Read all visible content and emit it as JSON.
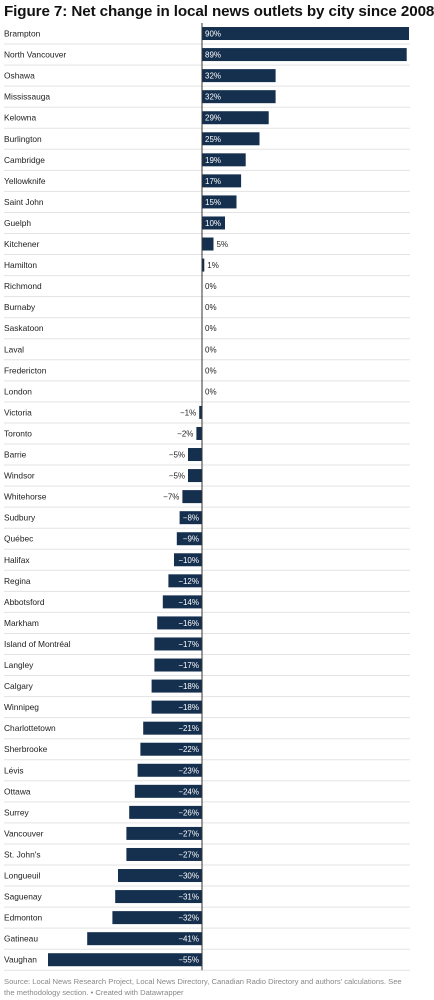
{
  "title": "Figure 7: Net change in local news outlets by city since 2008",
  "footer": {
    "source": "Source: Local News Research Project, Local News Directory, Canadian Radio Directory and authors' calculations. See the methodology section.",
    "credit": "Created with Datawrapper"
  },
  "colors": {
    "bar": "#152f4e",
    "label_inside": "#ffffff",
    "label_outside": "#222222",
    "gridline": "#e3e3e3"
  },
  "chart_data": {
    "type": "bar",
    "orientation": "horizontal",
    "value_suffix": "%",
    "categories": [
      "Brampton",
      "North Vancouver",
      "Oshawa",
      "Mississauga",
      "Kelowna",
      "Burlington",
      "Cambridge",
      "Yellowknife",
      "Saint John",
      "Guelph",
      "Kitchener",
      "Hamilton",
      "Richmond",
      "Burnaby",
      "Saskatoon",
      "Laval",
      "Fredericton",
      "London",
      "Victoria",
      "Toronto",
      "Barrie",
      "Windsor",
      "Whitehorse",
      "Sudbury",
      "Québec",
      "Halifax",
      "Regina",
      "Abbotsford",
      "Markham",
      "Island of Montréal",
      "Langley",
      "Calgary",
      "Winnipeg",
      "Charlottetown",
      "Sherbrooke",
      "Lévis",
      "Ottawa",
      "Surrey",
      "Vancouver",
      "St. John's",
      "Longueuil",
      "Saguenay",
      "Edmonton",
      "Gatineau",
      "Vaughan"
    ],
    "values": [
      90,
      89,
      32,
      32,
      29,
      25,
      19,
      17,
      15,
      10,
      5,
      1,
      0,
      0,
      0,
      0,
      0,
      0,
      -1,
      -2,
      -5,
      -5,
      -7,
      -8,
      -9,
      -10,
      -12,
      -14,
      -16,
      -17,
      -17,
      -18,
      -18,
      -21,
      -22,
      -23,
      -24,
      -26,
      -27,
      -27,
      -30,
      -31,
      -32,
      -41,
      -55
    ],
    "labels": [
      "90%",
      "89%",
      "32%",
      "32%",
      "29%",
      "25%",
      "19%",
      "17%",
      "15%",
      "10%",
      "5%",
      "1%",
      "0%",
      "0%",
      "0%",
      "0%",
      "0%",
      "0%",
      "−1%",
      "−2%",
      "−5%",
      "−5%",
      "−7%",
      "−8%",
      "−9%",
      "−10%",
      "−12%",
      "−14%",
      "−16%",
      "−17%",
      "−17%",
      "−18%",
      "−18%",
      "−21%",
      "−22%",
      "−23%",
      "−24%",
      "−26%",
      "−27%",
      "−27%",
      "−30%",
      "−31%",
      "−32%",
      "−41%",
      "−55%"
    ],
    "xlim": [
      -55,
      90
    ],
    "grid": false,
    "legend": "none"
  }
}
